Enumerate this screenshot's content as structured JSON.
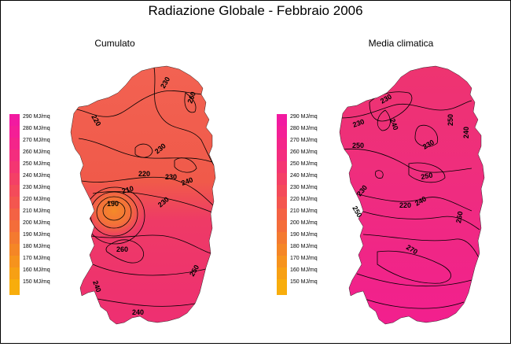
{
  "title": "Radiazione Globale - Febbraio 2006",
  "panels": [
    {
      "title": "Cumulato"
    },
    {
      "title": "Media climatica"
    }
  ],
  "legend": {
    "items": [
      {
        "label": "290 MJ/mq",
        "color": "#f21aa0"
      },
      {
        "label": "280 MJ/mq",
        "color": "#f41f96"
      },
      {
        "label": "270 MJ/mq",
        "color": "#f4258a"
      },
      {
        "label": "260 MJ/mq",
        "color": "#f42d7e"
      },
      {
        "label": "250 MJ/mq",
        "color": "#f43672"
      },
      {
        "label": "240 MJ/mq",
        "color": "#f44066"
      },
      {
        "label": "230 MJ/mq",
        "color": "#f44b5a"
      },
      {
        "label": "220 MJ/mq",
        "color": "#f4564f"
      },
      {
        "label": "210 MJ/mq",
        "color": "#f46244"
      },
      {
        "label": "200 MJ/mq",
        "color": "#f46d3a"
      },
      {
        "label": "190 MJ/mq",
        "color": "#f47a30"
      },
      {
        "label": "180 MJ/mq",
        "color": "#f58626"
      },
      {
        "label": "170 MJ/mq",
        "color": "#f6931d"
      },
      {
        "label": "160 MJ/mq",
        "color": "#f7a014"
      },
      {
        "label": "150 MJ/mq",
        "color": "#f8ad0c"
      }
    ]
  },
  "contours": {
    "cumulato": [
      "220",
      "230",
      "230",
      "220",
      "230",
      "240",
      "210",
      "190",
      "230",
      "260",
      "260",
      "250",
      "240",
      "240"
    ],
    "media": [
      "230",
      "240",
      "250",
      "240",
      "230",
      "250",
      "220",
      "240",
      "230",
      "230",
      "260",
      "270",
      "250",
      "250"
    ]
  },
  "colors": {
    "cumulato_north": "#f0604a",
    "cumulato_south": "#ee2f70",
    "media_base": "#ee2f7a",
    "media_south": "#f21f8e"
  }
}
